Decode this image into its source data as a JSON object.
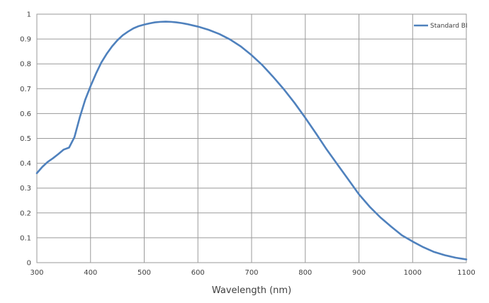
{
  "chart_data": {
    "type": "line",
    "title": "",
    "xlabel": "Wavelength (nm)",
    "ylabel": "",
    "xlim": [
      300,
      1100
    ],
    "ylim": [
      0,
      1
    ],
    "x_ticks": [
      300,
      400,
      500,
      600,
      700,
      800,
      900,
      1000,
      1100
    ],
    "y_ticks": [
      0,
      0.1,
      0.2,
      0.3,
      0.4,
      0.5,
      0.6,
      0.7,
      0.8,
      0.9,
      1
    ],
    "grid": true,
    "legend_position": "top-right",
    "series": [
      {
        "name": "Standard BI",
        "color": "#4f81bd",
        "x": [
          300,
          310,
          320,
          330,
          340,
          350,
          360,
          370,
          380,
          390,
          400,
          410,
          420,
          430,
          440,
          450,
          460,
          470,
          480,
          490,
          500,
          510,
          520,
          530,
          540,
          550,
          560,
          570,
          580,
          590,
          600,
          620,
          640,
          660,
          680,
          700,
          720,
          740,
          760,
          780,
          800,
          820,
          840,
          860,
          880,
          900,
          920,
          940,
          960,
          980,
          1000,
          1020,
          1040,
          1060,
          1080,
          1100
        ],
        "y": [
          0.36,
          0.385,
          0.405,
          0.42,
          0.437,
          0.455,
          0.463,
          0.505,
          0.585,
          0.655,
          0.71,
          0.76,
          0.805,
          0.84,
          0.87,
          0.895,
          0.915,
          0.93,
          0.943,
          0.952,
          0.958,
          0.963,
          0.967,
          0.969,
          0.97,
          0.969,
          0.967,
          0.964,
          0.96,
          0.955,
          0.95,
          0.937,
          0.92,
          0.898,
          0.87,
          0.835,
          0.795,
          0.748,
          0.698,
          0.643,
          0.583,
          0.52,
          0.455,
          0.395,
          0.335,
          0.275,
          0.225,
          0.182,
          0.145,
          0.11,
          0.085,
          0.062,
          0.043,
          0.03,
          0.02,
          0.013
        ]
      }
    ]
  }
}
